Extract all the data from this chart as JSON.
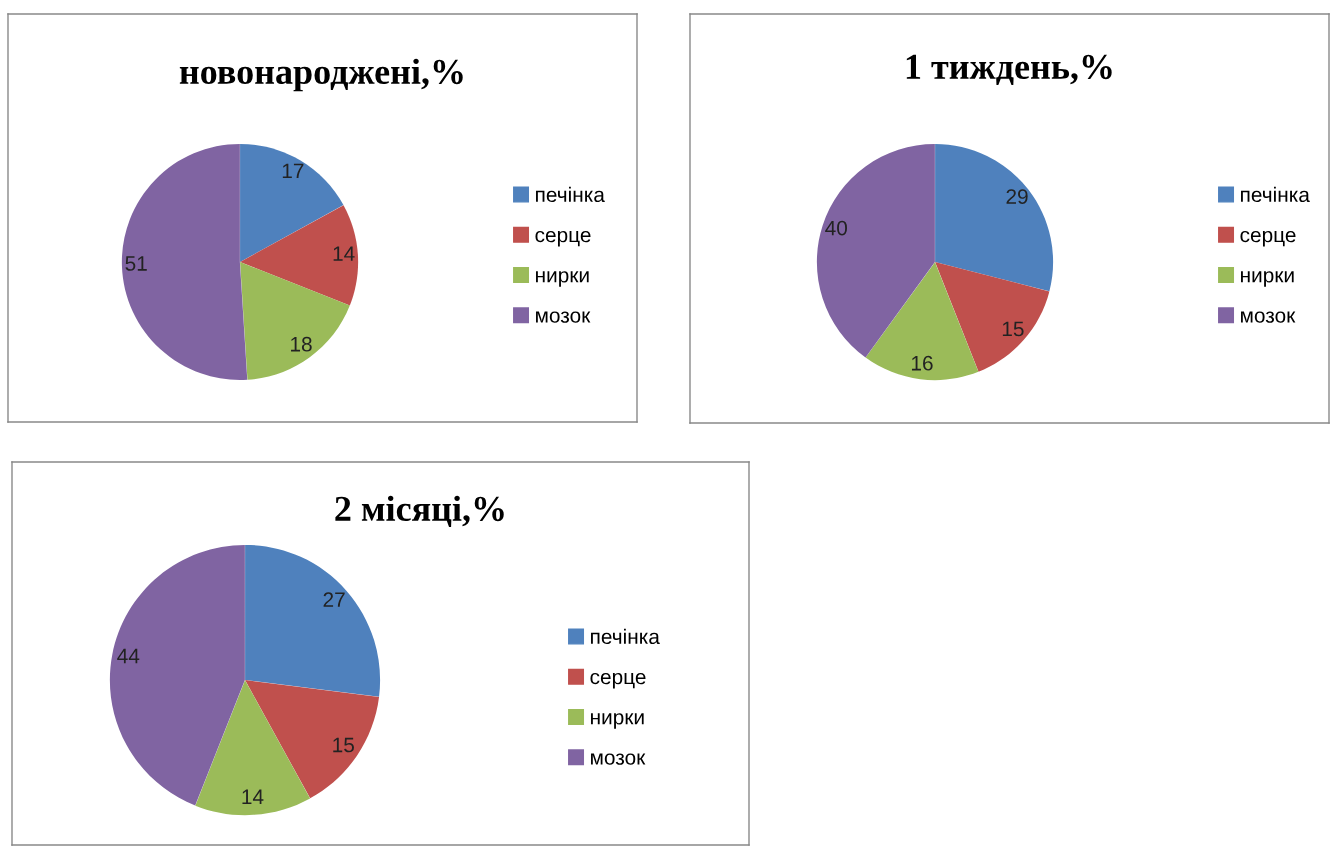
{
  "chart_data": [
    {
      "type": "pie",
      "title": "новонароджені,%",
      "categories": [
        "печінка",
        "серце",
        "нирки",
        "мозок"
      ],
      "values": [
        17,
        14,
        18,
        51
      ],
      "colors": [
        "#4f81bd",
        "#c0504d",
        "#9bbb59",
        "#8064a2"
      ],
      "data_labels": true,
      "legend": "right"
    },
    {
      "type": "pie",
      "title": "1 тиждень,%",
      "categories": [
        "печінка",
        "серце",
        "нирки",
        "мозок"
      ],
      "values": [
        29,
        15,
        16,
        40
      ],
      "colors": [
        "#4f81bd",
        "#c0504d",
        "#9bbb59",
        "#8064a2"
      ],
      "data_labels": true,
      "legend": "right"
    },
    {
      "type": "pie",
      "title": "2 місяці,%",
      "categories": [
        "печінка",
        "серце",
        "нирки",
        "мозок"
      ],
      "values": [
        27,
        15,
        14,
        44
      ],
      "colors": [
        "#4f81bd",
        "#c0504d",
        "#9bbb59",
        "#8064a2"
      ],
      "data_labels": true,
      "legend": "right"
    }
  ]
}
